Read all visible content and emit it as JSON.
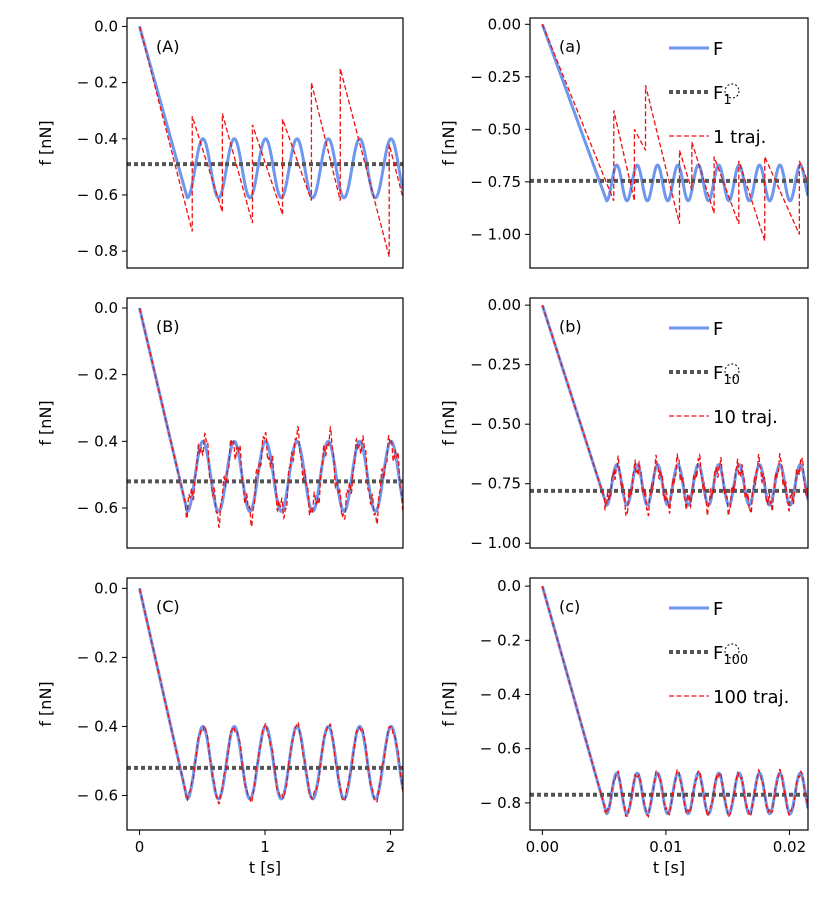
{
  "figure": {
    "colors": {
      "F": "#6f97ee",
      "mean": "#555555",
      "traj": "#ee1111",
      "frame": "#000000"
    }
  },
  "chart_data": [
    {
      "type": "line",
      "panel": "(A)",
      "xlabel": "",
      "ylabel": "f [nN]",
      "xlim": [
        -0.1,
        2.1
      ],
      "ylim": [
        -0.86,
        0.03
      ],
      "xticks": [],
      "xtick_labels": [],
      "yticks": [
        0,
        -0.2,
        -0.4,
        -0.6,
        -0.8
      ],
      "ytick_labels": [
        "0.0",
        "− 0.2",
        "− 0.4",
        "− 0.6",
        "− 0.8"
      ],
      "model": {
        "ramp_end": 0.38,
        "min": -0.61,
        "max": -0.4,
        "period": 0.25,
        "tmax": 2.1
      },
      "mean_value": -0.49,
      "traj_kind": "sawtooth",
      "traj_events": [
        [
          0.42,
          -0.73,
          -0.32
        ],
        [
          0.66,
          -0.66,
          -0.31
        ],
        [
          0.9,
          -0.7,
          -0.35
        ],
        [
          1.14,
          -0.67,
          -0.33
        ],
        [
          1.37,
          -0.62,
          -0.2
        ],
        [
          1.6,
          -0.62,
          -0.15
        ],
        [
          1.99,
          -0.82,
          -0.42
        ]
      ],
      "legend": null
    },
    {
      "type": "line",
      "panel": "(a)",
      "xlabel": "",
      "ylabel": "f [nN]",
      "xlim": [
        -0.001,
        0.0215
      ],
      "ylim": [
        -1.16,
        0.03
      ],
      "xticks": [],
      "xtick_labels": [],
      "yticks": [
        0,
        -0.25,
        -0.5,
        -0.75,
        -1.0
      ],
      "ytick_labels": [
        "0.00",
        "− 0.25",
        "− 0.50",
        "− 0.75",
        "− 1.00"
      ],
      "model": {
        "ramp_end": 0.0052,
        "min": -0.84,
        "max": -0.67,
        "period": 0.00165,
        "tmax": 0.0215
      },
      "mean_value": -0.745,
      "traj_kind": "sawtooth",
      "traj_events": [
        [
          0.00578,
          -0.84,
          -0.41
        ],
        [
          0.00745,
          -0.84,
          -0.5
        ],
        [
          0.00835,
          -0.6,
          -0.29
        ],
        [
          0.0111,
          -0.95,
          -0.6
        ],
        [
          0.0121,
          -0.79,
          -0.56
        ],
        [
          0.0139,
          -0.9,
          -0.63
        ],
        [
          0.0159,
          -0.95,
          -0.65
        ],
        [
          0.018,
          -1.03,
          -0.63
        ],
        [
          0.0208,
          -1.0,
          -0.65
        ]
      ],
      "legend": {
        "entries": [
          "F",
          "F",
          "1 traj."
        ],
        "subscript": "1"
      }
    },
    {
      "type": "line",
      "panel": "(B)",
      "xlabel": "",
      "ylabel": "f [nN]",
      "xlim": [
        -0.1,
        2.1
      ],
      "ylim": [
        -0.72,
        0.03
      ],
      "xticks": [],
      "xtick_labels": [],
      "yticks": [
        0,
        -0.2,
        -0.4,
        -0.6
      ],
      "ytick_labels": [
        "0.0",
        "− 0.2",
        "− 0.4",
        "− 0.6"
      ],
      "model": {
        "ramp_end": 0.38,
        "min": -0.61,
        "max": -0.4,
        "period": 0.25,
        "tmax": 2.1
      },
      "mean_value": -0.52,
      "traj_kind": "noisy",
      "traj_amp": 0.05,
      "legend": null
    },
    {
      "type": "line",
      "panel": "(b)",
      "xlabel": "",
      "ylabel": "f [nN]",
      "xlim": [
        -0.001,
        0.0215
      ],
      "ylim": [
        -1.02,
        0.03
      ],
      "xticks": [],
      "xtick_labels": [],
      "yticks": [
        0,
        -0.25,
        -0.5,
        -0.75,
        -1.0
      ],
      "ytick_labels": [
        "0.00",
        "− 0.25",
        "− 0.50",
        "− 0.75",
        "− 1.00"
      ],
      "model": {
        "ramp_end": 0.0052,
        "min": -0.84,
        "max": -0.67,
        "period": 0.00165,
        "tmax": 0.0215
      },
      "mean_value": -0.78,
      "traj_kind": "noisy",
      "traj_amp": 0.05,
      "legend": {
        "entries": [
          "F",
          "F",
          "10 traj."
        ],
        "subscript": "10"
      }
    },
    {
      "type": "line",
      "panel": "(C)",
      "xlabel": "t [s]",
      "ylabel": "f [nN]",
      "xlim": [
        -0.1,
        2.1
      ],
      "ylim": [
        -0.7,
        0.03
      ],
      "xticks": [
        0,
        1,
        2
      ],
      "xtick_labels": [
        "0",
        "1",
        "2"
      ],
      "yticks": [
        0,
        -0.2,
        -0.4,
        -0.6
      ],
      "ytick_labels": [
        "0.0",
        "− 0.2",
        "− 0.4",
        "− 0.6"
      ],
      "model": {
        "ramp_end": 0.38,
        "min": -0.61,
        "max": -0.4,
        "period": 0.25,
        "tmax": 2.1
      },
      "mean_value": -0.52,
      "traj_kind": "noisy",
      "traj_amp": 0.015,
      "legend": null
    },
    {
      "type": "line",
      "panel": "(c)",
      "xlabel": "t [s]",
      "ylabel": "f [nN]",
      "xlim": [
        -0.001,
        0.0215
      ],
      "ylim": [
        -0.9,
        0.03
      ],
      "xticks": [
        0,
        0.01,
        0.02
      ],
      "xtick_labels": [
        "0.00",
        "0.01",
        "0.02"
      ],
      "yticks": [
        0,
        -0.2,
        -0.4,
        -0.6,
        -0.8
      ],
      "ytick_labels": [
        "0.0",
        "− 0.2",
        "− 0.4",
        "− 0.6",
        "− 0.8"
      ],
      "model": {
        "ramp_end": 0.0052,
        "min": -0.84,
        "max": -0.69,
        "period": 0.00165,
        "tmax": 0.0215
      },
      "mean_value": -0.77,
      "traj_kind": "noisy",
      "traj_amp": 0.015,
      "legend": {
        "entries": [
          "F",
          "F",
          "100 traj."
        ],
        "subscript": "100"
      }
    }
  ]
}
